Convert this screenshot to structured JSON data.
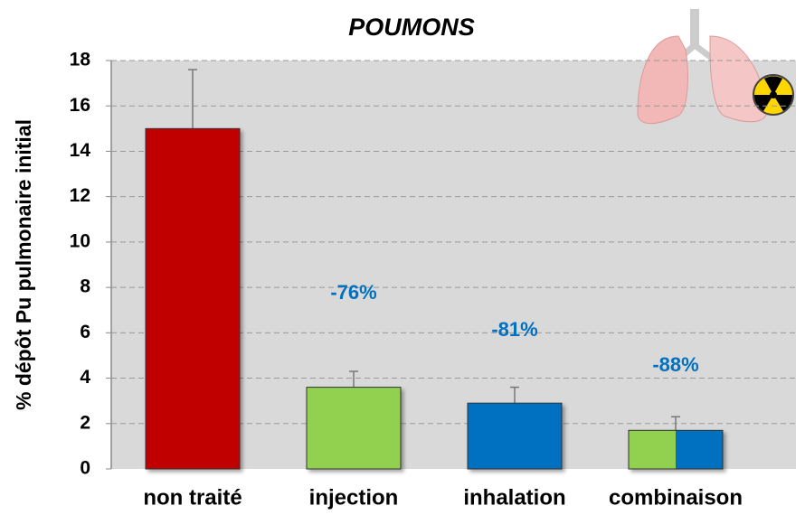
{
  "chart_data": {
    "type": "bar",
    "title": "POUMONS",
    "ylabel": "% dépôt Pu pulmonaire initial",
    "categories": [
      "non traité",
      "injection",
      "inhalation",
      "combinaison"
    ],
    "values": [
      15,
      3.6,
      2.9,
      1.7
    ],
    "errors": [
      2.6,
      0.7,
      0.7,
      0.6
    ],
    "colors": [
      "#c00000",
      "#92d050",
      "#0070c0",
      [
        "#92d050",
        "#0070c0"
      ]
    ],
    "annotations": [
      "-76%",
      "-81%",
      "-88%"
    ],
    "annotation_color": "#0070c0",
    "ylim": [
      0,
      18
    ],
    "yticks": [
      0,
      2,
      4,
      6,
      8,
      10,
      12,
      14,
      16,
      18
    ],
    "grid": true
  }
}
